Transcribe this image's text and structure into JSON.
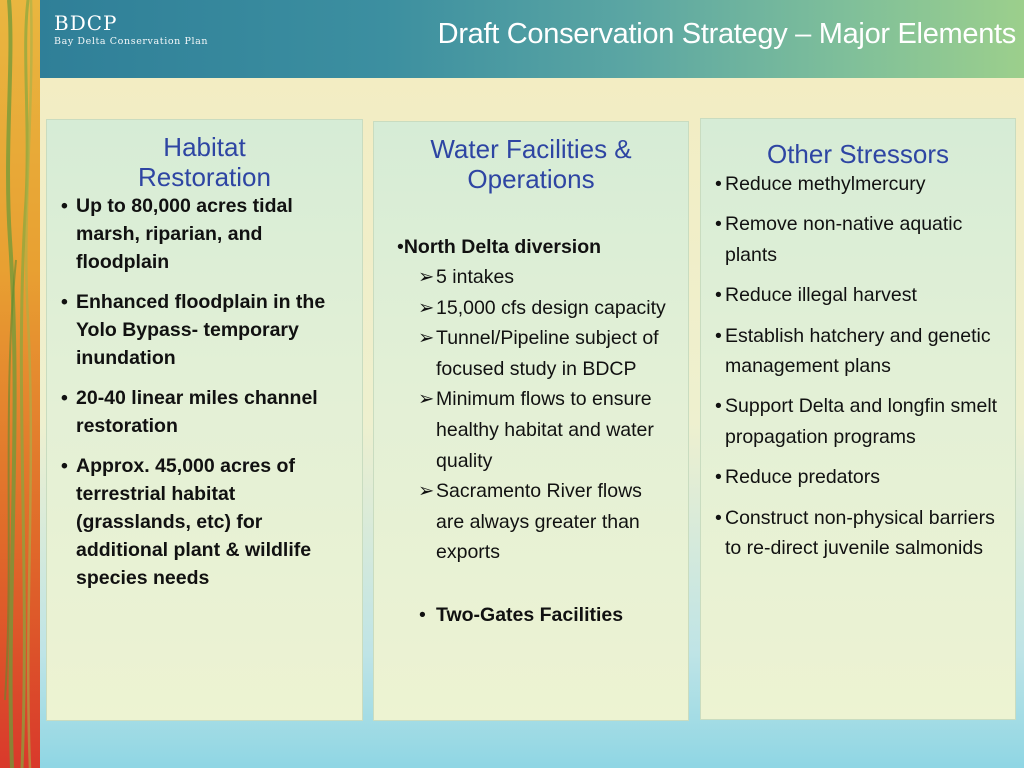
{
  "header": {
    "logo_main": "BDCP",
    "logo_sub": "Bay Delta Conservation Plan",
    "title": "Draft Conservation Strategy – Major Elements"
  },
  "colors": {
    "heading": "#2e45a3",
    "header_start": "#2f7f98",
    "header_end": "#9ccf8c",
    "accent_bar": "#e8a032"
  },
  "panels": {
    "habitat": {
      "heading": "Habitat Restoration",
      "items": [
        "Up to 80,000 acres tidal marsh, riparian, and floodplain",
        "Enhanced floodplain in the Yolo Bypass- temporary inundation",
        "20-40 linear miles channel restoration",
        "Approx. 45,000 acres of terrestrial habitat (grasslands, etc) for additional plant & wildlife species needs"
      ]
    },
    "water": {
      "heading": "Water Facilities & Operations",
      "main_item": "North Delta diversion",
      "sub_items": [
        "5 intakes",
        "15,000 cfs design capacity",
        "Tunnel/Pipeline subject of focused study in BDCP",
        "Minimum flows to ensure healthy habitat and water quality",
        "Sacramento River flows are always greater than exports"
      ],
      "extra_item": "Two-Gates Facilities"
    },
    "stressors": {
      "heading": "Other Stressors",
      "items": [
        "Reduce methylmercury",
        "Remove non-native aquatic plants",
        "Reduce illegal harvest",
        "Establish hatchery and genetic management plans",
        "Support Delta and longfin smelt propagation programs",
        "Reduce predators",
        "Construct non-physical barriers to re-direct juvenile salmonids"
      ]
    }
  }
}
